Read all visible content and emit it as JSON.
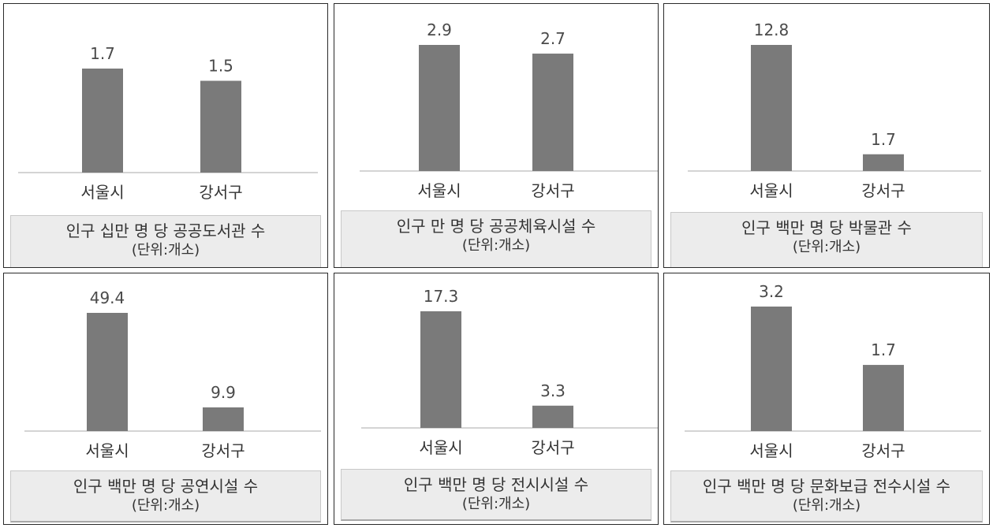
{
  "colors": {
    "bar": "#7a7a7a",
    "axis": "#c6c6c6",
    "caption_bg": "#ececec"
  },
  "chart_data": [
    {
      "type": "bar",
      "categories": [
        "서울시",
        "강서구"
      ],
      "values": [
        1.7,
        1.5
      ],
      "title": "인구 십만 명 당 공공도서관 수",
      "unit": "(단위:개소)",
      "ylim": [
        0,
        1.7
      ]
    },
    {
      "type": "bar",
      "categories": [
        "서울시",
        "강서구"
      ],
      "values": [
        2.9,
        2.7
      ],
      "title": "인구 만 명 당 공공체육시설 수",
      "unit": "(단위:개소)",
      "ylim": [
        0,
        2.9
      ]
    },
    {
      "type": "bar",
      "categories": [
        "서울시",
        "강서구"
      ],
      "values": [
        12.8,
        1.7
      ],
      "title": "인구 백만 명 당 박물관 수",
      "unit": "(단위:개소)",
      "ylim": [
        0,
        12.8
      ]
    },
    {
      "type": "bar",
      "categories": [
        "서울시",
        "강서구"
      ],
      "values": [
        49.4,
        9.9
      ],
      "title": "인구 백만 명 당 공연시설 수",
      "unit": "(단위:개소)",
      "ylim": [
        0,
        49.4
      ]
    },
    {
      "type": "bar",
      "categories": [
        "서울시",
        "강서구"
      ],
      "values": [
        17.3,
        3.3
      ],
      "title": "인구 백만 명 당 전시시설 수",
      "unit": "(단위:개소)",
      "ylim": [
        0,
        17.3
      ]
    },
    {
      "type": "bar",
      "categories": [
        "서울시",
        "강서구"
      ],
      "values": [
        3.2,
        1.7
      ],
      "title": "인구 백만 명 당 문화보급 전수시설 수",
      "unit": "(단위:개소)",
      "ylim": [
        0,
        3.2
      ]
    }
  ]
}
